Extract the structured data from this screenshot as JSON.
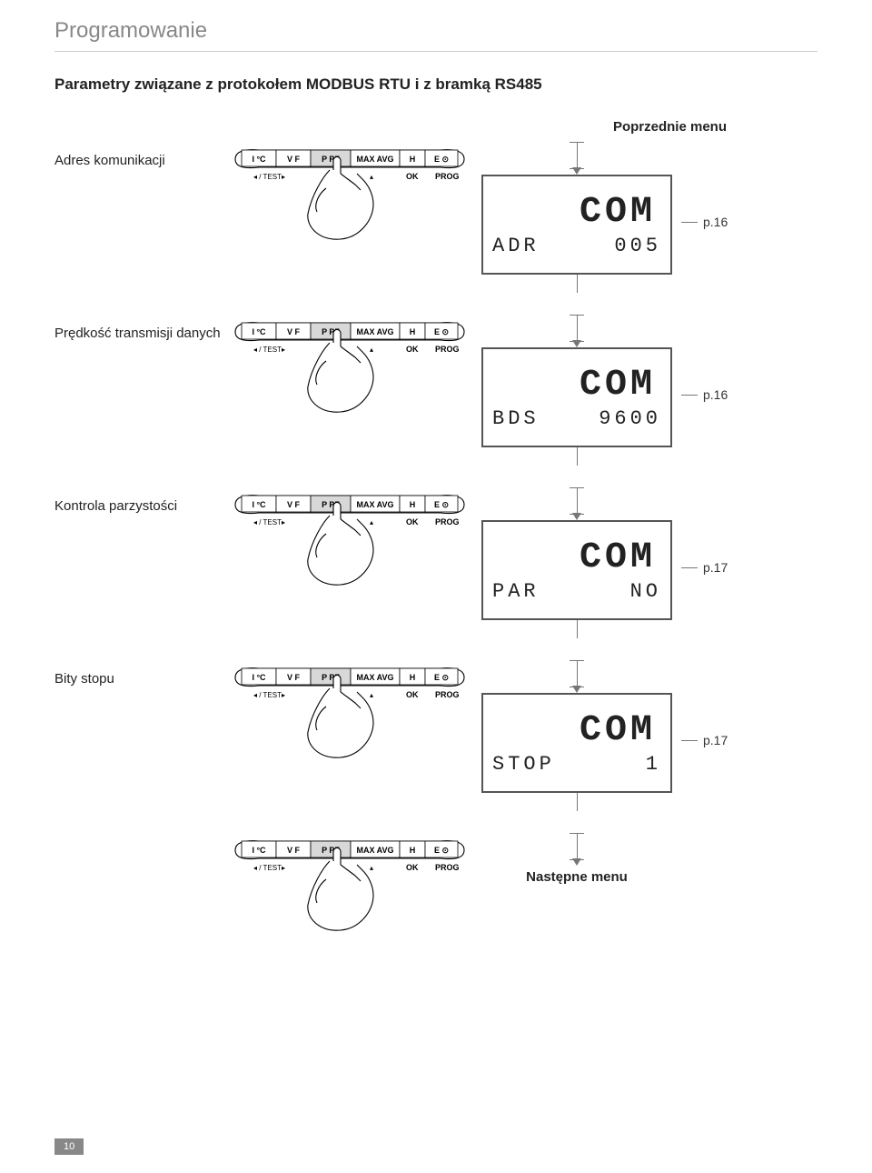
{
  "page": {
    "header": "Programowanie",
    "section_title": "Parametry związane z protokołem MODBUS RTU i z bramką RS485",
    "prev_menu": "Poprzednie menu",
    "next_menu": "Następne menu",
    "page_number": "10"
  },
  "panel": {
    "segments": [
      "I °C",
      "V  F",
      "P  PF",
      "MAX AVG",
      "H",
      "E ⊙"
    ],
    "left_label": "◂ / TEST",
    "right_labels": [
      "▸",
      "▾",
      "▴",
      "OK",
      "PROG"
    ]
  },
  "rows": [
    {
      "label": "Adres komunikacji",
      "lcd_big": "COM",
      "lcd_small_left": "ADR",
      "lcd_small_right": "005",
      "pref": "p.16"
    },
    {
      "label": "Prędkość transmisji danych",
      "lcd_big": "COM",
      "lcd_small_left": "BDS",
      "lcd_small_right": "9600",
      "pref": "p.16"
    },
    {
      "label": "Kontrola parzystości",
      "lcd_big": "COM",
      "lcd_small_left": "PAR",
      "lcd_small_right": "NO",
      "pref": "p.17"
    },
    {
      "label": "Bity stopu",
      "lcd_big": "COM",
      "lcd_small_left": "STOP",
      "lcd_small_right": "1",
      "pref": "p.17"
    }
  ],
  "colors": {
    "header_text": "#888888",
    "rule": "#cccccc",
    "text": "#222222",
    "lcd_border": "#555555",
    "flow_line": "#777777",
    "pagenum_bg": "#888888"
  }
}
